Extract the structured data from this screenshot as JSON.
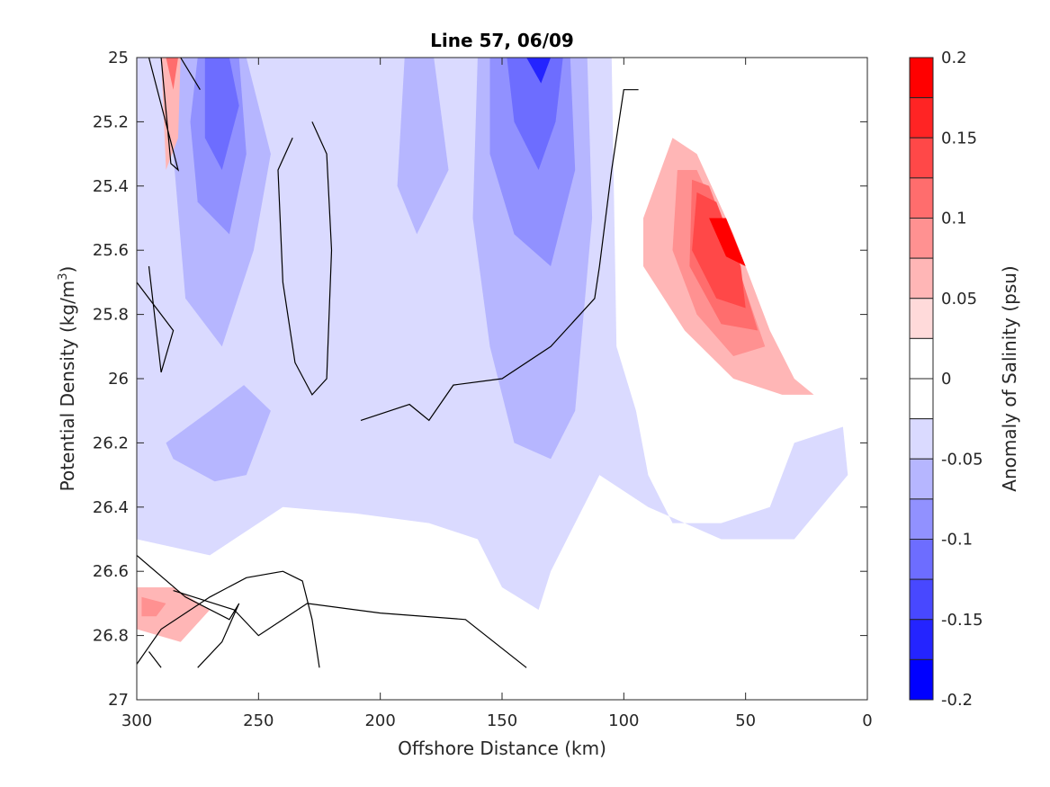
{
  "chart_data": {
    "type": "contour",
    "title": "Line 57, 06/09",
    "xlabel": "Offshore Distance (km)",
    "ylabel_main": "Potential Density (kg/m",
    "ylabel_sup": "3",
    "ylabel_close": ")",
    "xlim": [
      300,
      0
    ],
    "ylim": [
      25,
      27
    ],
    "x_reversed": true,
    "y_reversed": true,
    "xticks": [
      "300",
      "250",
      "200",
      "150",
      "100",
      "50",
      "0"
    ],
    "yticks": [
      "25",
      "25.2",
      "25.4",
      "25.6",
      "25.8",
      "26",
      "26.2",
      "26.4",
      "26.6",
      "26.8",
      "27"
    ],
    "colorbar": {
      "label": "Anomaly of Salinity (psu)",
      "range": [
        -0.2,
        0.2
      ],
      "tick_labels": [
        "0.2",
        "0.15",
        "0.1",
        "0.05",
        "0",
        "-0.05",
        "-0.1",
        "-0.15",
        "-0.2"
      ],
      "levels": [
        {
          "lo": 0.175,
          "hi": 0.2,
          "color": "#ff0000"
        },
        {
          "lo": 0.15,
          "hi": 0.175,
          "color": "#ff2424"
        },
        {
          "lo": 0.125,
          "hi": 0.15,
          "color": "#ff4848"
        },
        {
          "lo": 0.1,
          "hi": 0.125,
          "color": "#ff6d6d"
        },
        {
          "lo": 0.075,
          "hi": 0.1,
          "color": "#ff9191"
        },
        {
          "lo": 0.05,
          "hi": 0.075,
          "color": "#ffb6b6"
        },
        {
          "lo": 0.025,
          "hi": 0.05,
          "color": "#ffdada"
        },
        {
          "lo": 0.0,
          "hi": 0.025,
          "color": "#ffffff"
        },
        {
          "lo": -0.025,
          "hi": 0.0,
          "color": "#ffffff"
        },
        {
          "lo": -0.05,
          "hi": -0.025,
          "color": "#dadaff"
        },
        {
          "lo": -0.075,
          "hi": -0.05,
          "color": "#b6b6ff"
        },
        {
          "lo": -0.1,
          "hi": -0.075,
          "color": "#9191ff"
        },
        {
          "lo": -0.125,
          "hi": -0.1,
          "color": "#6d6dff"
        },
        {
          "lo": -0.15,
          "hi": -0.125,
          "color": "#4848ff"
        },
        {
          "lo": -0.175,
          "hi": -0.15,
          "color": "#2424ff"
        },
        {
          "lo": -0.2,
          "hi": -0.175,
          "color": "#0000ff"
        }
      ]
    },
    "regions": [
      {
        "name": "light-blue-west-upper",
        "level": -0.05,
        "points": [
          [
            300,
            25
          ],
          [
            280,
            25
          ],
          [
            278,
            25.35
          ],
          [
            270,
            26.05
          ],
          [
            285,
            26.2
          ],
          [
            300,
            26.3
          ]
        ]
      },
      {
        "name": "light-blue-main",
        "level": -0.05,
        "points": [
          [
            285,
            25
          ],
          [
            105,
            25
          ],
          [
            103,
            25.9
          ],
          [
            95,
            26.1
          ],
          [
            90,
            26.3
          ],
          [
            80,
            26.45
          ],
          [
            60,
            26.45
          ],
          [
            40,
            26.4
          ],
          [
            30,
            26.2
          ],
          [
            10,
            26.15
          ],
          [
            8,
            26.3
          ],
          [
            30,
            26.5
          ],
          [
            60,
            26.5
          ],
          [
            90,
            26.4
          ],
          [
            110,
            26.3
          ],
          [
            120,
            26.45
          ],
          [
            130,
            26.6
          ],
          [
            135,
            26.72
          ],
          [
            150,
            26.65
          ],
          [
            160,
            26.5
          ],
          [
            180,
            26.45
          ],
          [
            210,
            26.42
          ],
          [
            240,
            26.4
          ],
          [
            270,
            26.55
          ],
          [
            300,
            26.5
          ],
          [
            300,
            26.3
          ]
        ]
      },
      {
        "name": "blue-west-core",
        "level": -0.075,
        "points": [
          [
            282,
            25
          ],
          [
            255,
            25
          ],
          [
            245,
            25.3
          ],
          [
            252,
            25.6
          ],
          [
            265,
            25.9
          ],
          [
            280,
            25.75
          ],
          [
            285,
            25.3
          ]
        ]
      },
      {
        "name": "blue-west-mid",
        "level": -0.1,
        "points": [
          [
            275,
            25
          ],
          [
            258,
            25
          ],
          [
            255,
            25.3
          ],
          [
            262,
            25.55
          ],
          [
            275,
            25.45
          ],
          [
            278,
            25.2
          ]
        ]
      },
      {
        "name": "blue-west-deep",
        "level": -0.125,
        "points": [
          [
            272,
            25
          ],
          [
            262,
            25
          ],
          [
            258,
            25.15
          ],
          [
            265,
            25.35
          ],
          [
            272,
            25.25
          ]
        ]
      },
      {
        "name": "blue-west-lower",
        "level": -0.075,
        "points": [
          [
            288,
            26.2
          ],
          [
            270,
            26.1
          ],
          [
            256,
            26.02
          ],
          [
            245,
            26.1
          ],
          [
            255,
            26.3
          ],
          [
            268,
            26.32
          ],
          [
            285,
            26.25
          ]
        ]
      },
      {
        "name": "blue-center-core",
        "level": -0.075,
        "points": [
          [
            160,
            25
          ],
          [
            115,
            25
          ],
          [
            113,
            25.5
          ],
          [
            120,
            26.1
          ],
          [
            130,
            26.25
          ],
          [
            145,
            26.2
          ],
          [
            155,
            25.9
          ],
          [
            162,
            25.5
          ]
        ]
      },
      {
        "name": "blue-center-mid",
        "level": -0.1,
        "points": [
          [
            155,
            25
          ],
          [
            122,
            25
          ],
          [
            120,
            25.35
          ],
          [
            130,
            25.65
          ],
          [
            145,
            25.55
          ],
          [
            155,
            25.3
          ]
        ]
      },
      {
        "name": "blue-center-deep",
        "level": -0.125,
        "points": [
          [
            148,
            25
          ],
          [
            125,
            25
          ],
          [
            128,
            25.2
          ],
          [
            135,
            25.35
          ],
          [
            145,
            25.2
          ]
        ]
      },
      {
        "name": "blue-center-deepest",
        "level": -0.175,
        "points": [
          [
            140,
            25
          ],
          [
            130,
            25
          ],
          [
            134,
            25.08
          ]
        ]
      },
      {
        "name": "blue-center-left",
        "level": -0.075,
        "points": [
          [
            190,
            25
          ],
          [
            178,
            25
          ],
          [
            172,
            25.35
          ],
          [
            185,
            25.55
          ],
          [
            193,
            25.4
          ]
        ]
      },
      {
        "name": "red-west-upper",
        "level": 0.05,
        "points": [
          [
            290,
            25
          ],
          [
            282,
            25
          ],
          [
            283,
            25.25
          ],
          [
            288,
            25.35
          ]
        ]
      },
      {
        "name": "red-west-upper-core",
        "level": 0.1,
        "points": [
          [
            288,
            25
          ],
          [
            283,
            25
          ],
          [
            285,
            25.1
          ]
        ]
      },
      {
        "name": "red-west-lower",
        "level": 0.05,
        "points": [
          [
            300,
            26.65
          ],
          [
            285,
            26.65
          ],
          [
            270,
            26.72
          ],
          [
            282,
            26.82
          ],
          [
            300,
            26.78
          ]
        ]
      },
      {
        "name": "red-west-lower-core",
        "level": 0.075,
        "points": [
          [
            298,
            26.68
          ],
          [
            288,
            26.7
          ],
          [
            292,
            26.74
          ],
          [
            298,
            26.74
          ]
        ]
      },
      {
        "name": "red-east-outer",
        "level": 0.05,
        "points": [
          [
            92,
            25.5
          ],
          [
            80,
            25.25
          ],
          [
            70,
            25.3
          ],
          [
            55,
            25.55
          ],
          [
            40,
            25.85
          ],
          [
            30,
            26
          ],
          [
            22,
            26.05
          ],
          [
            35,
            26.05
          ],
          [
            55,
            26.0
          ],
          [
            75,
            25.85
          ],
          [
            92,
            25.65
          ]
        ]
      },
      {
        "name": "red-east-2",
        "level": 0.075,
        "points": [
          [
            78,
            25.35
          ],
          [
            70,
            25.35
          ],
          [
            58,
            25.55
          ],
          [
            42,
            25.9
          ],
          [
            55,
            25.93
          ],
          [
            70,
            25.8
          ],
          [
            80,
            25.6
          ]
        ]
      },
      {
        "name": "red-east-3",
        "level": 0.1,
        "points": [
          [
            72,
            25.38
          ],
          [
            65,
            25.4
          ],
          [
            55,
            25.6
          ],
          [
            45,
            25.85
          ],
          [
            60,
            25.83
          ],
          [
            73,
            25.65
          ]
        ]
      },
      {
        "name": "red-east-4",
        "level": 0.125,
        "points": [
          [
            70,
            25.42
          ],
          [
            62,
            25.45
          ],
          [
            52,
            25.65
          ],
          [
            50,
            25.78
          ],
          [
            62,
            25.75
          ],
          [
            72,
            25.6
          ]
        ]
      },
      {
        "name": "red-east-core",
        "level": 0.175,
        "points": [
          [
            65,
            25.5
          ],
          [
            58,
            25.5
          ],
          [
            50,
            25.65
          ],
          [
            58,
            25.62
          ]
        ]
      }
    ],
    "zero_contours": [
      [
        [
          290,
          25
        ],
        [
          286,
          25.33
        ],
        [
          283,
          25.35
        ],
        [
          295,
          25
        ]
      ],
      [
        [
          282,
          25
        ],
        [
          274,
          25.1
        ]
      ],
      [
        [
          295,
          25.65
        ],
        [
          290,
          25.98
        ],
        [
          285,
          25.85
        ],
        [
          300,
          25.7
        ]
      ],
      [
        [
          228,
          25.2
        ],
        [
          222,
          25.3
        ],
        [
          220,
          25.6
        ],
        [
          222,
          26
        ],
        [
          228,
          26.05
        ],
        [
          235,
          25.95
        ],
        [
          240,
          25.7
        ],
        [
          242,
          25.35
        ],
        [
          236,
          25.25
        ]
      ],
      [
        [
          300,
          26.55
        ],
        [
          280,
          26.68
        ],
        [
          262,
          26.75
        ],
        [
          258,
          26.7
        ],
        [
          265,
          26.82
        ],
        [
          275,
          26.9
        ]
      ],
      [
        [
          295,
          26.85
        ],
        [
          290,
          26.9
        ]
      ],
      [
        [
          225,
          26.9
        ],
        [
          228,
          26.75
        ],
        [
          232,
          26.63
        ],
        [
          240,
          26.6
        ],
        [
          255,
          26.62
        ],
        [
          270,
          26.68
        ],
        [
          290,
          26.78
        ],
        [
          301,
          26.9
        ]
      ],
      [
        [
          94,
          25.1
        ],
        [
          100,
          25.1
        ],
        [
          105,
          25.35
        ],
        [
          110,
          25.65
        ],
        [
          112,
          25.75
        ],
        [
          130,
          25.9
        ],
        [
          150,
          26.0
        ],
        [
          170,
          26.02
        ],
        [
          180,
          26.13
        ],
        [
          188,
          26.08
        ],
        [
          208,
          26.13
        ]
      ],
      [
        [
          140,
          26.9
        ],
        [
          165,
          26.75
        ],
        [
          200,
          26.73
        ],
        [
          230,
          26.7
        ],
        [
          250,
          26.8
        ],
        [
          260,
          26.72
        ],
        [
          285,
          26.66
        ]
      ]
    ]
  }
}
